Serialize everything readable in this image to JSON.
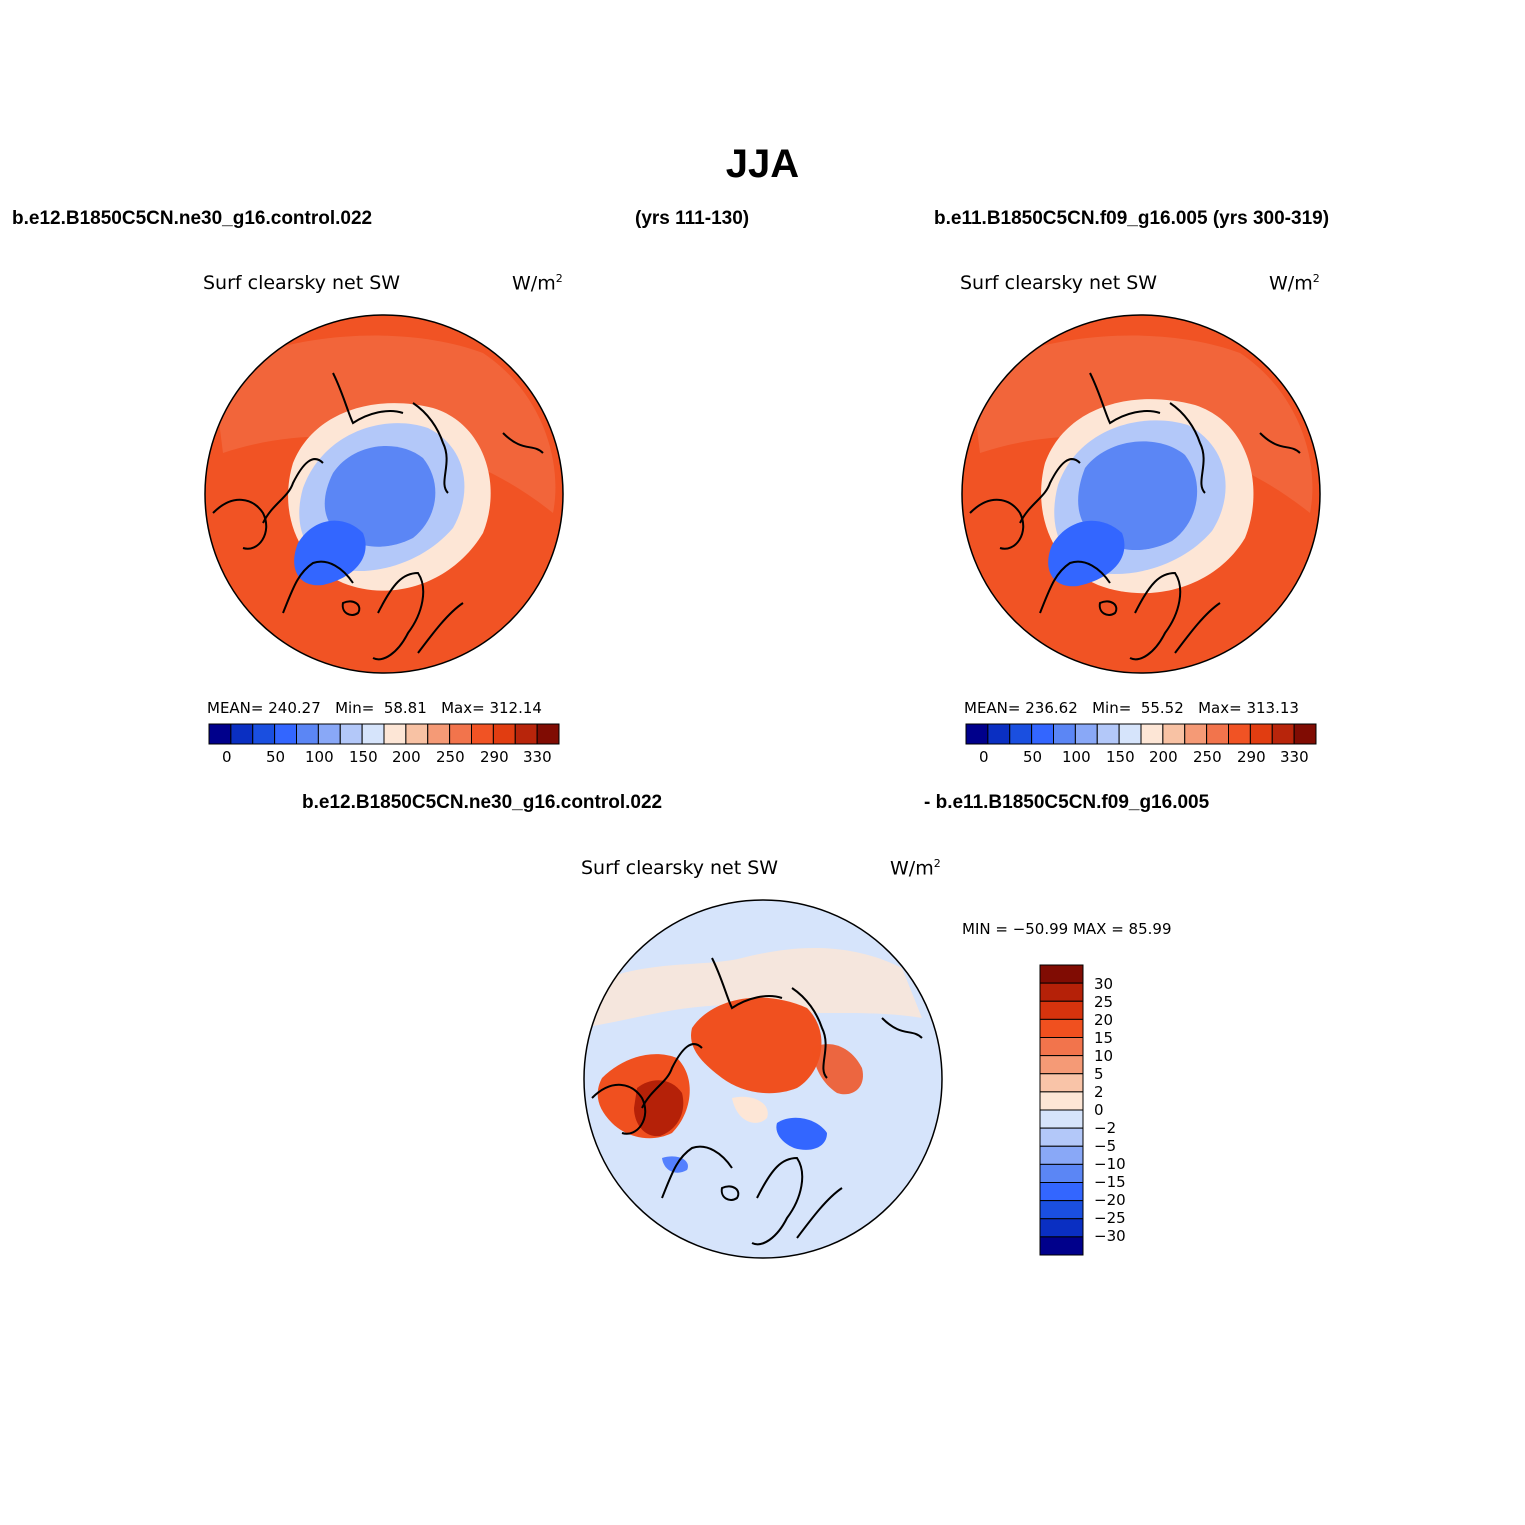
{
  "figure": {
    "title": "JJA",
    "case_left": "b.e12.B1850C5CN.ne30_g16.control.022",
    "years_left": "(yrs 111-130)",
    "case_right": "b.e11.B1850C5CN.f09_g16.005 (yrs 300-319)",
    "diff_case_a": "b.e12.B1850C5CN.ne30_g16.control.022",
    "diff_case_b": "- b.e11.B1850C5CN.f09_g16.005"
  },
  "panels": [
    {
      "variable": "Surf clearsky net SW",
      "units": "W/m",
      "units_sup": "2",
      "mean_label": "MEAN=",
      "mean": "240.27",
      "min_label": "Min=",
      "min": "58.81",
      "max_label": "Max=",
      "max": "312.14"
    },
    {
      "variable": "Surf clearsky net SW",
      "units": "W/m",
      "units_sup": "2",
      "mean_label": "MEAN=",
      "mean": "236.62",
      "min_label": "Min=",
      "min": "55.52",
      "max_label": "Max=",
      "max": "313.13"
    },
    {
      "variable": "Surf clearsky net SW",
      "units": "W/m",
      "units_sup": "2",
      "minmax_label": "MIN = −50.99  MAX =   85.99"
    }
  ],
  "colorbar_abs": {
    "colors": [
      "#00008b",
      "#0a2fc2",
      "#1a4fe0",
      "#3366ff",
      "#5b86f5",
      "#89a8f7",
      "#b3c8f9",
      "#d6e4fb",
      "#fde6d6",
      "#f8c2a4",
      "#f59a76",
      "#f2744c",
      "#f15324",
      "#e13d11",
      "#b8250b",
      "#800c03"
    ],
    "labels": [
      "0",
      "50",
      "100",
      "150",
      "200",
      "250",
      "290",
      "330"
    ]
  },
  "colorbar_diff": {
    "colors": [
      "#800c03",
      "#b52108",
      "#d7330d",
      "#f0501f",
      "#f2744c",
      "#f59a76",
      "#f9c4a8",
      "#fde6d6",
      "#d6e4fb",
      "#b3c8f9",
      "#89a8f7",
      "#5b86f5",
      "#3366ff",
      "#1a4fe0",
      "#0a2fc2",
      "#00008b"
    ],
    "labels": [
      "30",
      "25",
      "20",
      "15",
      "10",
      "5",
      "2",
      "0",
      "−2",
      "−5",
      "−10",
      "−15",
      "−20",
      "−25",
      "−30"
    ]
  },
  "maps": [
    {
      "field": "absolute",
      "colors": {
        "outer": "#f15324",
        "mid": "#f2744c",
        "light": "#fde6d6",
        "ice1": "#b3c8f9",
        "ice2": "#5b86f5",
        "ice3": "#3366ff"
      }
    },
    {
      "field": "absolute",
      "colors": {
        "outer": "#f15324",
        "mid": "#f2744c",
        "light": "#fde6d6",
        "ice1": "#b3c8f9",
        "ice2": "#5b86f5",
        "ice3": "#3366ff"
      }
    },
    {
      "field": "difference",
      "colors": {
        "base": "#d6e4fb",
        "pos": "#f0501f",
        "pos2": "#b52108",
        "neg": "#3366ff",
        "light": "#fde6d6"
      }
    }
  ]
}
